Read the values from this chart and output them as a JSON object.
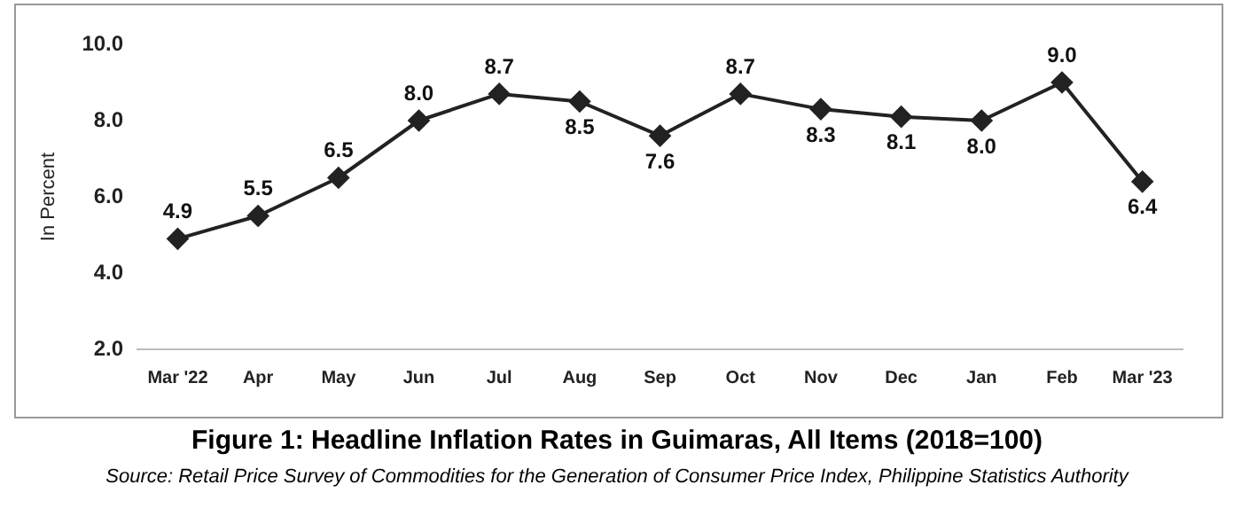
{
  "chart_data": {
    "type": "line",
    "title": "Figure 1: Headline Inflation Rates in Guimaras, All Items (2018=100)",
    "ylabel": "In Percent",
    "annotations": [
      "Source: Retail Price Survey of Commodities for the Generation of Consumer Price Index, Philippine Statistics Authority"
    ],
    "categories": [
      "Mar '22",
      "Apr",
      "May",
      "Jun",
      "Jul",
      "Aug",
      "Sep",
      "Oct",
      "Nov",
      "Dec",
      "Jan",
      "Feb",
      "Mar '23"
    ],
    "series": [
      {
        "color": "#222222",
        "values": [
          4.9,
          5.5,
          6.5,
          8.0,
          8.7,
          8.5,
          7.6,
          8.7,
          8.3,
          8.1,
          8.0,
          9.0,
          6.4
        ],
        "value_labels": [
          "4.9",
          "5.5",
          "6.5",
          "8.0",
          "8.7",
          "8.5",
          "7.6",
          "8.7",
          "8.3",
          "8.1",
          "8.0",
          "9.0",
          "6.4"
        ]
      }
    ],
    "ylim": [
      2,
      10
    ],
    "yticks": [
      {
        "value": 2,
        "label": "2.0"
      },
      {
        "value": 4,
        "label": "4.0"
      },
      {
        "value": 6,
        "label": "6.0"
      },
      {
        "value": 8,
        "label": "8.0"
      },
      {
        "value": 10,
        "label": "10.0"
      }
    ],
    "grid": false,
    "legend": false,
    "marker": "diamond",
    "line_style": "solid"
  }
}
